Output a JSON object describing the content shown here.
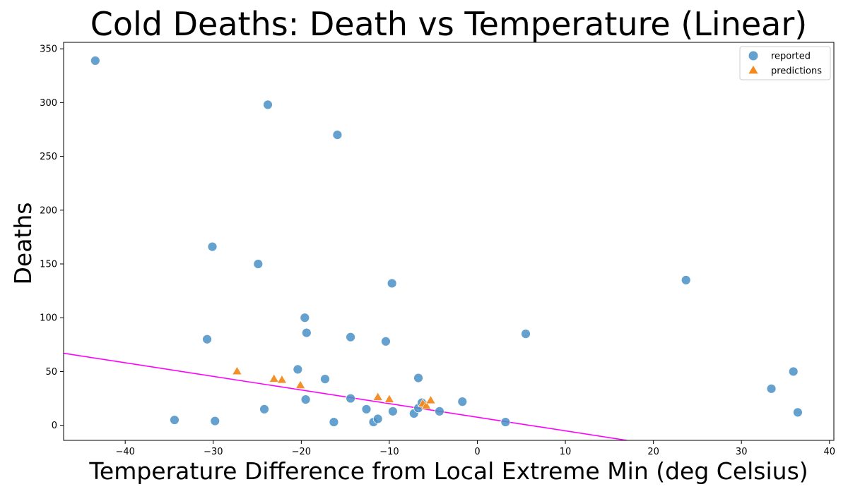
{
  "chart_data": {
    "type": "scatter",
    "title": "Cold Deaths: Death vs Temperature (Linear)",
    "xlabel": "Temperature Difference from Local Extreme Min (deg Celsius)",
    "ylabel": "Deaths",
    "xlim": [
      -47,
      40.5
    ],
    "ylim": [
      -14,
      356
    ],
    "xticks": [
      -40,
      -30,
      -20,
      -10,
      0,
      10,
      20,
      30,
      40
    ],
    "yticks": [
      0,
      50,
      100,
      150,
      200,
      250,
      300,
      350
    ],
    "grid": false,
    "legend": {
      "position": "top-right"
    },
    "series": [
      {
        "name": "reported",
        "marker": "circle",
        "color": "#4a90c6",
        "points": [
          [
            -43.4,
            339
          ],
          [
            -23.8,
            298
          ],
          [
            -15.9,
            270
          ],
          [
            -30.1,
            166
          ],
          [
            -24.9,
            150
          ],
          [
            -9.7,
            132
          ],
          [
            23.7,
            135
          ],
          [
            -19.6,
            100
          ],
          [
            -19.4,
            86
          ],
          [
            5.5,
            85
          ],
          [
            -30.7,
            80
          ],
          [
            -14.4,
            82
          ],
          [
            -10.4,
            78
          ],
          [
            -20.4,
            52
          ],
          [
            -17.3,
            43
          ],
          [
            -6.7,
            44
          ],
          [
            35.9,
            50
          ],
          [
            33.4,
            34
          ],
          [
            -19.5,
            24
          ],
          [
            -14.4,
            25
          ],
          [
            -34.4,
            5
          ],
          [
            -29.8,
            4
          ],
          [
            -24.2,
            15
          ],
          [
            -16.3,
            3
          ],
          [
            -12.6,
            15
          ],
          [
            -11.8,
            3
          ],
          [
            -11.3,
            6
          ],
          [
            -9.6,
            13
          ],
          [
            -7.2,
            11
          ],
          [
            -6.7,
            16
          ],
          [
            -6.3,
            21
          ],
          [
            -4.3,
            13
          ],
          [
            -1.7,
            22
          ],
          [
            3.2,
            3
          ],
          [
            36.4,
            12
          ]
        ]
      },
      {
        "name": "predictions",
        "marker": "triangle",
        "color": "#f28a1e",
        "points": [
          [
            -27.3,
            50
          ],
          [
            -23.1,
            43
          ],
          [
            -22.2,
            42
          ],
          [
            -20.1,
            37
          ],
          [
            -11.3,
            26
          ],
          [
            -10.0,
            24
          ],
          [
            -6.2,
            20
          ],
          [
            -5.8,
            18
          ],
          [
            -5.3,
            23
          ]
        ]
      }
    ],
    "fit_line": {
      "color": "#ff00ff",
      "x": [
        -47,
        17
      ],
      "y": [
        67,
        -14
      ]
    }
  }
}
